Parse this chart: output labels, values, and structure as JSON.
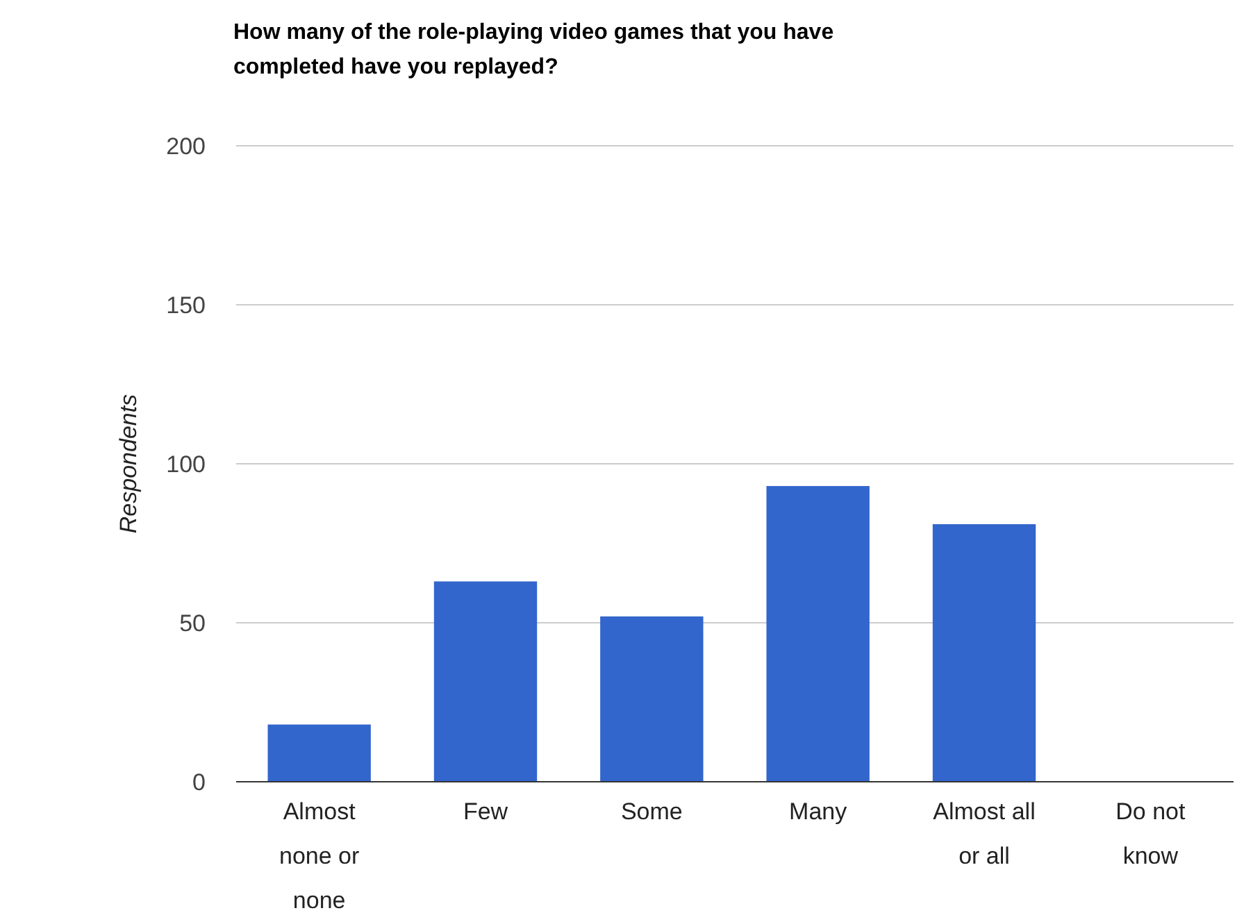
{
  "chart_data": {
    "type": "bar",
    "title": "How many of the role-playing video games that you have completed have you replayed?",
    "ylabel": "Respondents",
    "categories": [
      "Almost none or none",
      "Few",
      "Some",
      "Many",
      "Almost all or all",
      "Do not know"
    ],
    "values": [
      18,
      63,
      52,
      93,
      81,
      0
    ],
    "color": "#3366cc",
    "ylim": [
      0,
      200
    ],
    "yticks": [
      0,
      50,
      100,
      150,
      200
    ],
    "grid": true
  }
}
